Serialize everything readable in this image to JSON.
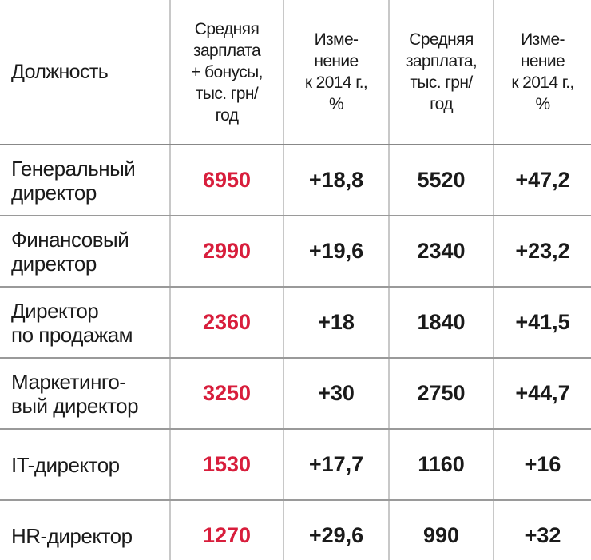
{
  "table": {
    "header": [
      "Должность",
      "Средняя\nзарплата\n+ бонусы,\nтыс. грн/\nгод",
      "Изме-\nнение\nк 2014 г.,\n%",
      "Средняя\nзарплата,\nтыс. грн/\nгод",
      "Изме-\nнение\nк 2014 г.,\n%"
    ],
    "rows": [
      [
        "Генеральный\nдиректор",
        "6950",
        "+18,8",
        "5520",
        "+47,2"
      ],
      [
        "Финансовый\nдиректор",
        "2990",
        "+19,6",
        "2340",
        "+23,2"
      ],
      [
        "Директор\nпо продажам",
        "2360",
        "+18",
        "1840",
        "+41,5"
      ],
      [
        "Маркетинго-\nвый директор",
        "3250",
        "+30",
        "2750",
        "+44,7"
      ],
      [
        "IT-директор",
        "1530",
        "+17,7",
        "1160",
        "+16"
      ],
      [
        "HR-директор",
        "1270",
        "+29,6",
        "990",
        "+32"
      ]
    ]
  }
}
